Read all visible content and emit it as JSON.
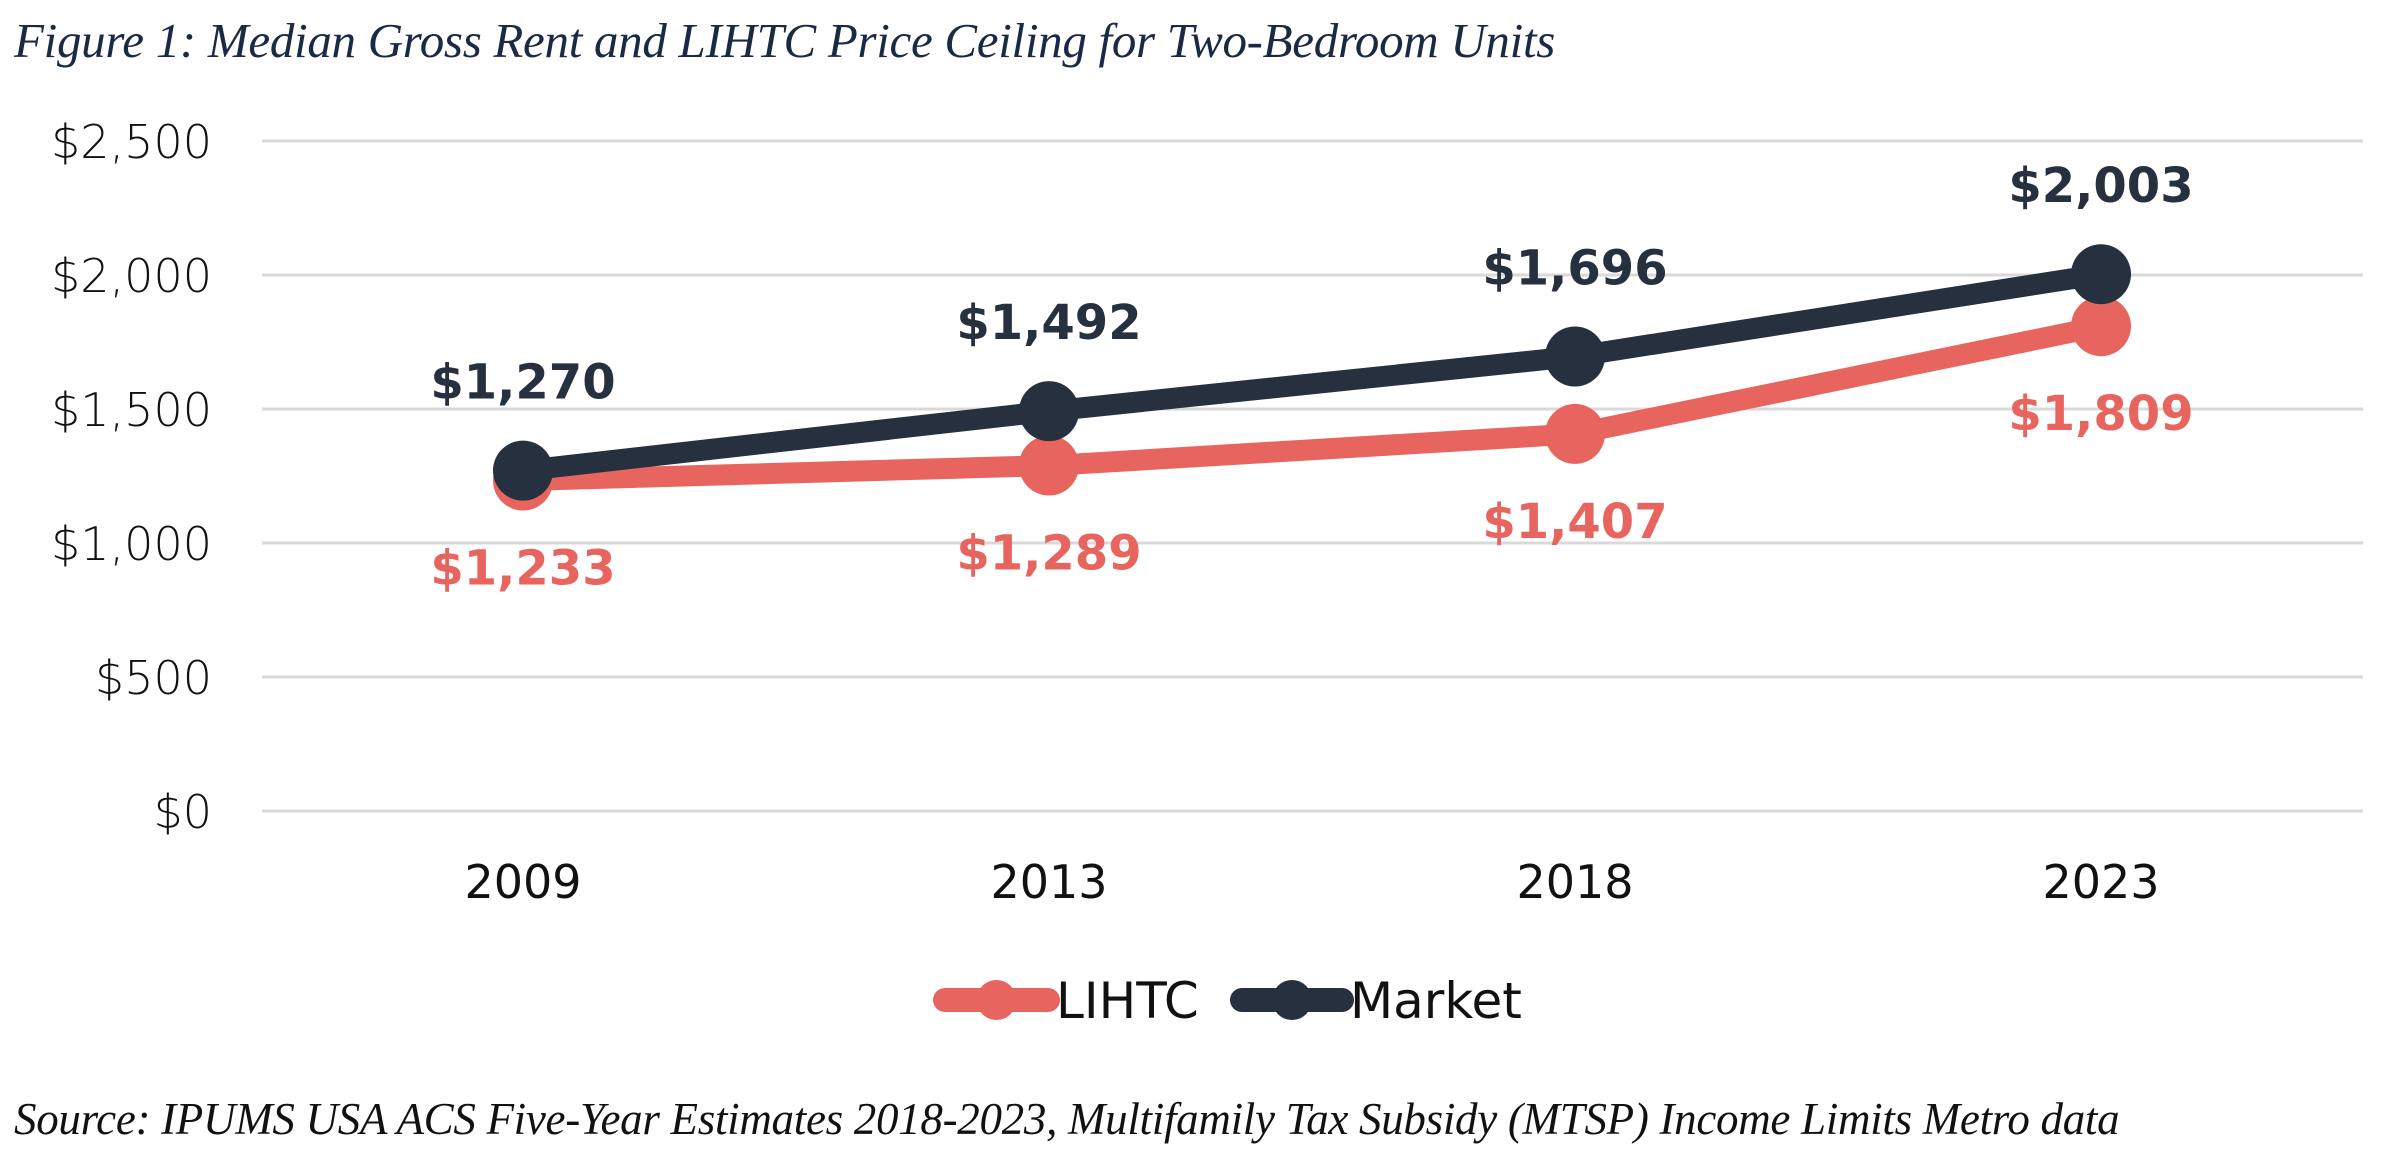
{
  "figure": {
    "title": "Figure 1: Median Gross Rent and LIHTC Price Ceiling for Two-Bedroom Units",
    "source": "Source: IPUMS USA ACS Five-Year Estimates 2018-2023, Multifamily Tax Subsidy (MTSP) Income Limits Metro data"
  },
  "chart_data": {
    "type": "line",
    "title": "Median Gross Rent and LIHTC Price Ceiling for Two-Bedroom Units",
    "xlabel": "",
    "ylabel": "",
    "categories": [
      "2009",
      "2013",
      "2018",
      "2023"
    ],
    "ylim": [
      0,
      2500
    ],
    "yticks": [
      0,
      500,
      1000,
      1500,
      2000,
      2500
    ],
    "ytick_labels": [
      "$0",
      "$500",
      "$1,000",
      "$1,500",
      "$2,000",
      "$2,500"
    ],
    "grid": true,
    "legend_position": "bottom",
    "series": [
      {
        "name": "LIHTC",
        "color": "#e8655f",
        "values": [
          1233,
          1289,
          1407,
          1809
        ],
        "labels": [
          "$1,233",
          "$1,289",
          "$1,407",
          "$1,809"
        ],
        "label_position": "below"
      },
      {
        "name": "Market",
        "color": "#26303f",
        "values": [
          1270,
          1492,
          1696,
          2003
        ],
        "labels": [
          "$1,270",
          "$1,492",
          "$1,696",
          "$2,003"
        ],
        "label_position": "above"
      }
    ]
  }
}
